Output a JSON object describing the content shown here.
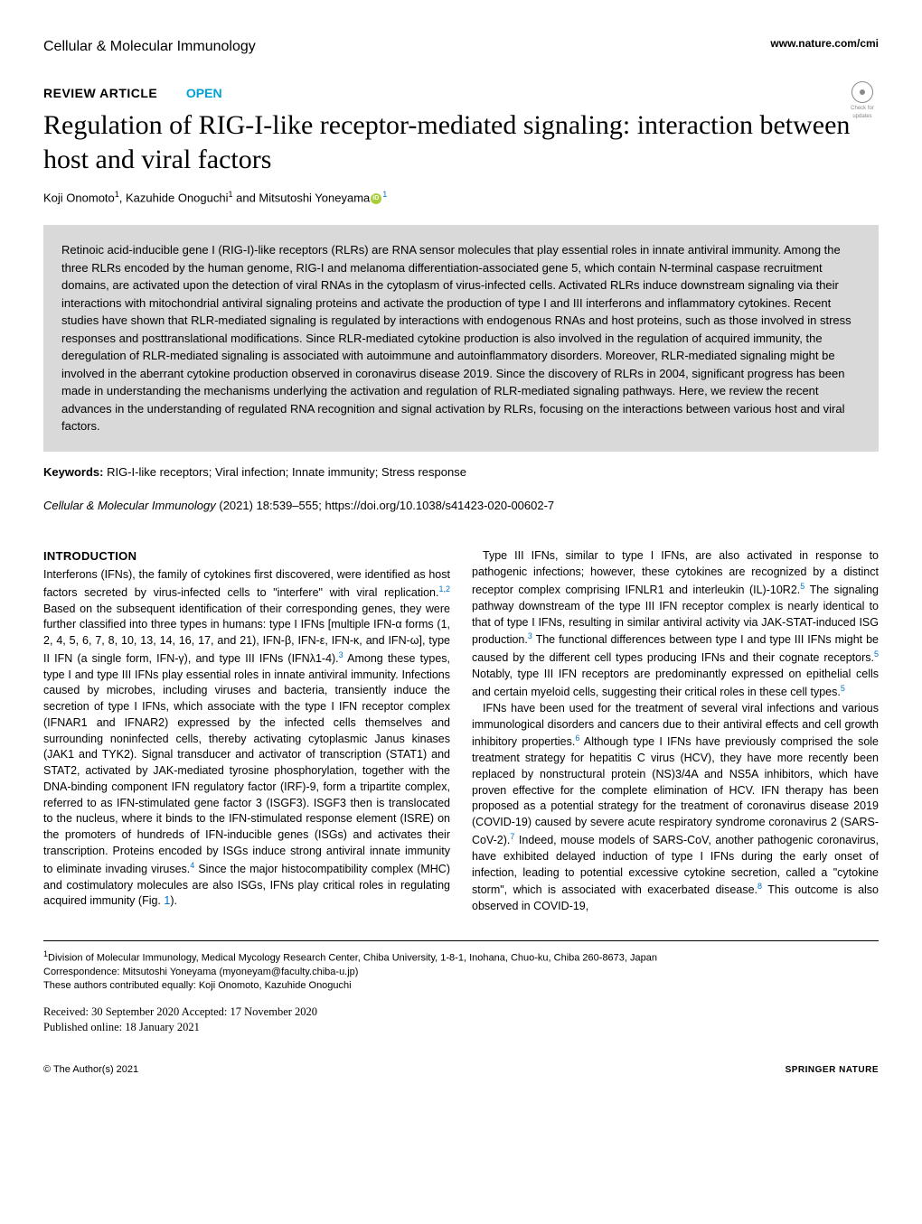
{
  "header": {
    "journal_name": "Cellular & Molecular Immunology",
    "journal_url": "www.nature.com/cmi",
    "check_updates_label": "Check for updates"
  },
  "article": {
    "type_label": "REVIEW ARTICLE",
    "open_label": "OPEN",
    "title": "Regulation of RIG-I-like receptor-mediated signaling: interaction between host and viral factors",
    "authors_html": "Koji Onomoto<span class='sup'>1</span>, Kazuhide Onoguchi<span class='sup'>1</span> and Mitsutoshi Yoneyama<span class='orcid-icon' data-name='orcid-icon' data-interactable='false'></span><span class='sup' style='color:#0072c6'>1</span>",
    "abstract": "Retinoic acid-inducible gene I (RIG-I)-like receptors (RLRs) are RNA sensor molecules that play essential roles in innate antiviral immunity. Among the three RLRs encoded by the human genome, RIG-I and melanoma differentiation-associated gene 5, which contain N-terminal caspase recruitment domains, are activated upon the detection of viral RNAs in the cytoplasm of virus-infected cells. Activated RLRs induce downstream signaling via their interactions with mitochondrial antiviral signaling proteins and activate the production of type I and III interferons and inflammatory cytokines. Recent studies have shown that RLR-mediated signaling is regulated by interactions with endogenous RNAs and host proteins, such as those involved in stress responses and posttranslational modifications. Since RLR-mediated cytokine production is also involved in the regulation of acquired immunity, the deregulation of RLR-mediated signaling is associated with autoimmune and autoinflammatory disorders. Moreover, RLR-mediated signaling might be involved in the aberrant cytokine production observed in coronavirus disease 2019. Since the discovery of RLRs in 2004, significant progress has been made in understanding the mechanisms underlying the activation and regulation of RLR-mediated signaling pathways. Here, we review the recent advances in the understanding of regulated RNA recognition and signal activation by RLRs, focusing on the interactions between various host and viral factors.",
    "keywords_label": "Keywords:",
    "keywords": "RIG-I-like receptors; Viral infection; Innate immunity; Stress response",
    "citation_journal": "Cellular & Molecular Immunology",
    "citation_details": " (2021) 18:539–555; ",
    "doi": "https://doi.org/10.1038/s41423-020-00602-7"
  },
  "body": {
    "intro_heading": "INTRODUCTION",
    "p1": "Interferons (IFNs), the family of cytokines first discovered, were identified as host factors secreted by virus-infected cells to \"interfere\" with viral replication.<span class='ref-sup'>1,2</span> Based on the subsequent identification of their corresponding genes, they were further classified into three types in humans: type I IFNs [multiple IFN-α forms (1, 2, 4, 5, 6, 7, 8, 10, 13, 14, 16, 17, and 21), IFN-β, IFN-ε, IFN-κ, and IFN-ω], type II IFN (a single form, IFN-γ), and type III IFNs (IFNλ1-4).<span class='ref-sup'>3</span> Among these types, type I and type III IFNs play essential roles in innate antiviral immunity. Infections caused by microbes, including viruses and bacteria, transiently induce the secretion of type I IFNs, which associate with the type I IFN receptor complex (IFNAR1 and IFNAR2) expressed by the infected cells themselves and surrounding noninfected cells, thereby activating cytoplasmic Janus kinases (JAK1 and TYK2). Signal transducer and activator of transcription (STAT1) and STAT2, activated by JAK-mediated tyrosine phosphorylation, together with the DNA-binding component IFN regulatory factor (IRF)-9, form a tripartite complex, referred to as IFN-stimulated gene factor 3 (ISGF3). ISGF3 then is translocated to the nucleus, where it binds to the IFN-stimulated response element (ISRE) on the promoters of hundreds of IFN-inducible genes (ISGs) and activates their transcription. Proteins encoded by ISGs induce strong antiviral innate immunity to eliminate invading viruses.<span class='ref-sup'>4</span> Since the major histocompatibility complex (MHC) and costimulatory molecules are also ISGs, IFNs play critical roles in regulating acquired immunity (Fig. <span style='color:#0072c6'>1</span>).",
    "p2": "Type III IFNs, similar to type I IFNs, are also activated in response to pathogenic infections; however, these cytokines are recognized by a distinct receptor complex comprising IFNLR1 and interleukin (IL)-10R2.<span class='ref-sup'>5</span> The signaling pathway downstream of the type III IFN receptor complex is nearly identical to that of type I IFNs, resulting in similar antiviral activity via JAK-STAT-induced ISG production.<span class='ref-sup'>3</span> The functional differences between type I and type III IFNs might be caused by the different cell types producing IFNs and their cognate receptors.<span class='ref-sup'>5</span> Notably, type III IFN receptors are predominantly expressed on epithelial cells and certain myeloid cells, suggesting their critical roles in these cell types.<span class='ref-sup'>5</span>",
    "p3": "IFNs have been used for the treatment of several viral infections and various immunological disorders and cancers due to their antiviral effects and cell growth inhibitory properties.<span class='ref-sup'>6</span> Although type I IFNs have previously comprised the sole treatment strategy for hepatitis C virus (HCV), they have more recently been replaced by nonstructural protein (NS)3/4A and NS5A inhibitors, which have proven effective for the complete elimination of HCV. IFN therapy has been proposed as a potential strategy for the treatment of coronavirus disease 2019 (COVID-19) caused by severe acute respiratory syndrome coronavirus 2 (SARS-CoV-2).<span class='ref-sup'>7</span> Indeed, mouse models of SARS-CoV, another pathogenic coronavirus, have exhibited delayed induction of type I IFNs during the early onset of infection, leading to potential excessive cytokine secretion, called a \"cytokine storm\", which is associated with exacerbated disease.<span class='ref-sup'>8</span> This outcome is also observed in COVID-19,"
  },
  "footer": {
    "affiliation": "<span class='sup'>1</span>Division of Molecular Immunology, Medical Mycology Research Center, Chiba University, 1-8-1, Inohana, Chuo-ku, Chiba 260-8673, Japan",
    "correspondence": "Correspondence: Mitsutoshi Yoneyama (myoneyam@faculty.chiba-u.jp)",
    "contrib": "These authors contributed equally: Koji Onomoto, Kazuhide Onoguchi",
    "received": "Received: 30 September 2020 Accepted: 17 November 2020",
    "published": "Published online: 18 January 2021",
    "copyright": "© The Author(s) 2021",
    "publisher": "SPRINGER NATURE"
  },
  "styles": {
    "background": "#ffffff",
    "abstract_bg": "#d9d9d9",
    "open_color": "#009fd6",
    "ref_color": "#0072c6",
    "orcid_color": "#a6ce39",
    "title_fontsize": 30,
    "body_fontsize": 12.5
  }
}
